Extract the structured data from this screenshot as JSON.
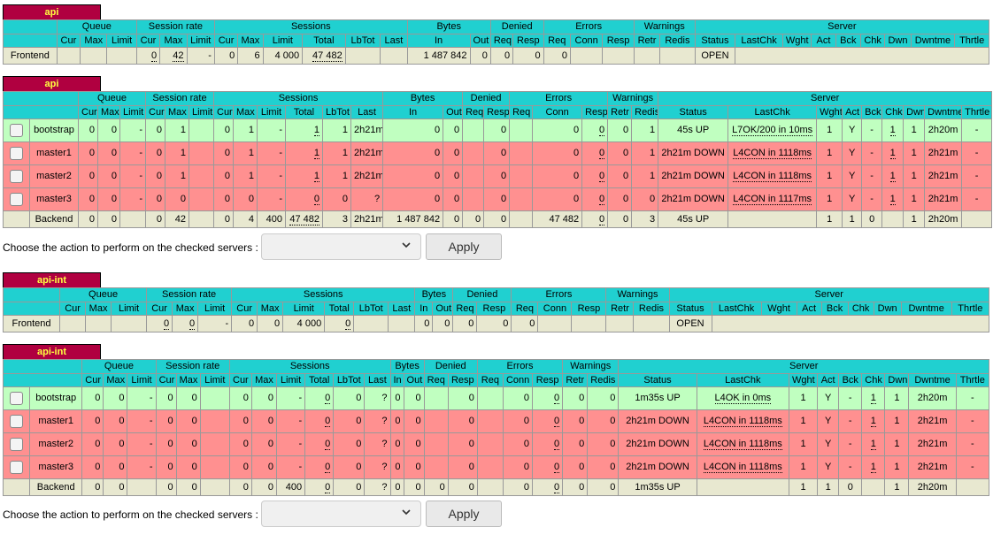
{
  "headers": {
    "queue": "Queue",
    "session_rate": "Session rate",
    "sessions": "Sessions",
    "bytes": "Bytes",
    "denied": "Denied",
    "errors": "Errors",
    "warnings": "Warnings",
    "server": "Server",
    "cur": "Cur",
    "max": "Max",
    "limit": "Limit",
    "total": "Total",
    "lbtot": "LbTot",
    "last": "Last",
    "in": "In",
    "out": "Out",
    "req": "Req",
    "resp": "Resp",
    "conn": "Conn",
    "retr": "Retr",
    "redis": "Redis",
    "status": "Status",
    "lastchk": "LastChk",
    "wght": "Wght",
    "act": "Act",
    "bck": "Bck",
    "chk": "Chk",
    "dwn": "Dwn",
    "dwntme": "Dwntme",
    "thrtle": "Thrtle"
  },
  "action": {
    "label": "Choose the action to perform on the checked servers :",
    "apply": "Apply",
    "dropdown_icon": "chevron-down-icon"
  },
  "colors": {
    "title_bg": "#b00040",
    "title_fg": "#ffff40",
    "header_bg": "#20d0d0",
    "up_bg": "#c0ffc0",
    "down_bg": "#ff9090",
    "frontend_bg": "#e8e8d0"
  },
  "api_frontend": {
    "title": "api",
    "row": {
      "name": "Frontend",
      "sr_cur": "0",
      "sr_max": "42",
      "sr_limit": "-",
      "s_cur": "0",
      "s_max": "6",
      "s_limit": "4 000",
      "s_total": "47 482",
      "b_in": "1 487 842",
      "b_out": "0",
      "d_req": "0",
      "d_resp": "0",
      "e_req": "0",
      "status": "OPEN"
    }
  },
  "api_backend": {
    "title": "api",
    "servers": [
      {
        "name": "bootstrap",
        "q_cur": "0",
        "q_max": "0",
        "q_limit": "-",
        "sr_cur": "0",
        "sr_max": "1",
        "s_cur": "0",
        "s_max": "1",
        "s_limit": "-",
        "s_total": "1",
        "s_lbtot": "1",
        "s_last": "2h21m",
        "b_in": "0",
        "b_out": "0",
        "d_resp": "0",
        "e_conn": "0",
        "e_resp": "0",
        "w_retr": "0",
        "w_redis": "1",
        "status": "45s UP",
        "lastchk": "L7OK/200 in 10ms",
        "wght": "1",
        "act": "Y",
        "bck": "-",
        "chk": "1",
        "dwn": "1",
        "dwntme": "2h20m",
        "thrtle": "-"
      },
      {
        "name": "master1",
        "q_cur": "0",
        "q_max": "0",
        "q_limit": "-",
        "sr_cur": "0",
        "sr_max": "1",
        "s_cur": "0",
        "s_max": "1",
        "s_limit": "-",
        "s_total": "1",
        "s_lbtot": "1",
        "s_last": "2h21m",
        "b_in": "0",
        "b_out": "0",
        "d_resp": "0",
        "e_conn": "0",
        "e_resp": "0",
        "w_retr": "0",
        "w_redis": "1",
        "status": "2h21m DOWN",
        "lastchk": "L4CON in 1118ms",
        "wght": "1",
        "act": "Y",
        "bck": "-",
        "chk": "1",
        "dwn": "1",
        "dwntme": "2h21m",
        "thrtle": "-"
      },
      {
        "name": "master2",
        "q_cur": "0",
        "q_max": "0",
        "q_limit": "-",
        "sr_cur": "0",
        "sr_max": "1",
        "s_cur": "0",
        "s_max": "1",
        "s_limit": "-",
        "s_total": "1",
        "s_lbtot": "1",
        "s_last": "2h21m",
        "b_in": "0",
        "b_out": "0",
        "d_resp": "0",
        "e_conn": "0",
        "e_resp": "0",
        "w_retr": "0",
        "w_redis": "1",
        "status": "2h21m DOWN",
        "lastchk": "L4CON in 1118ms",
        "wght": "1",
        "act": "Y",
        "bck": "-",
        "chk": "1",
        "dwn": "1",
        "dwntme": "2h21m",
        "thrtle": "-"
      },
      {
        "name": "master3",
        "q_cur": "0",
        "q_max": "0",
        "q_limit": "-",
        "sr_cur": "0",
        "sr_max": "0",
        "s_cur": "0",
        "s_max": "0",
        "s_limit": "-",
        "s_total": "0",
        "s_lbtot": "0",
        "s_last": "?",
        "b_in": "0",
        "b_out": "0",
        "d_resp": "0",
        "e_conn": "0",
        "e_resp": "0",
        "w_retr": "0",
        "w_redis": "0",
        "status": "2h21m DOWN",
        "lastchk": "L4CON in 1117ms",
        "wght": "1",
        "act": "Y",
        "bck": "-",
        "chk": "1",
        "dwn": "1",
        "dwntme": "2h21m",
        "thrtle": "-"
      }
    ],
    "backend": {
      "name": "Backend",
      "q_cur": "0",
      "q_max": "0",
      "sr_cur": "0",
      "sr_max": "42",
      "s_cur": "0",
      "s_max": "4",
      "s_limit": "400",
      "s_total": "47 482",
      "s_lbtot": "3",
      "s_last": "2h21m",
      "b_in": "1 487 842",
      "b_out": "0",
      "d_req": "0",
      "d_resp": "0",
      "e_conn": "47 482",
      "e_resp": "0",
      "w_retr": "0",
      "w_redis": "3",
      "status": "45s UP",
      "wght": "1",
      "act": "1",
      "bck": "0",
      "dwn": "1",
      "dwntme": "2h20m"
    }
  },
  "apiint_frontend": {
    "title": "api-int",
    "row": {
      "name": "Frontend",
      "sr_cur": "0",
      "sr_max": "0",
      "sr_limit": "-",
      "s_cur": "0",
      "s_max": "0",
      "s_limit": "4 000",
      "s_total": "0",
      "b_in": "0",
      "b_out": "0",
      "d_req": "0",
      "d_resp": "0",
      "e_req": "0",
      "status": "OPEN"
    }
  },
  "apiint_backend": {
    "title": "api-int",
    "servers": [
      {
        "name": "bootstrap",
        "q_cur": "0",
        "q_max": "0",
        "q_limit": "-",
        "sr_cur": "0",
        "sr_max": "0",
        "s_cur": "0",
        "s_max": "0",
        "s_limit": "-",
        "s_total": "0",
        "s_lbtot": "0",
        "s_last": "?",
        "b_in": "0",
        "b_out": "0",
        "d_resp": "0",
        "e_conn": "0",
        "e_resp": "0",
        "w_retr": "0",
        "w_redis": "0",
        "status": "1m35s UP",
        "lastchk": "L4OK in 0ms",
        "wght": "1",
        "act": "Y",
        "bck": "-",
        "chk": "1",
        "dwn": "1",
        "dwntme": "2h20m",
        "thrtle": "-"
      },
      {
        "name": "master1",
        "q_cur": "0",
        "q_max": "0",
        "q_limit": "-",
        "sr_cur": "0",
        "sr_max": "0",
        "s_cur": "0",
        "s_max": "0",
        "s_limit": "-",
        "s_total": "0",
        "s_lbtot": "0",
        "s_last": "?",
        "b_in": "0",
        "b_out": "0",
        "d_resp": "0",
        "e_conn": "0",
        "e_resp": "0",
        "w_retr": "0",
        "w_redis": "0",
        "status": "2h21m DOWN",
        "lastchk": "L4CON in 1118ms",
        "wght": "1",
        "act": "Y",
        "bck": "-",
        "chk": "1",
        "dwn": "1",
        "dwntme": "2h21m",
        "thrtle": "-"
      },
      {
        "name": "master2",
        "q_cur": "0",
        "q_max": "0",
        "q_limit": "-",
        "sr_cur": "0",
        "sr_max": "0",
        "s_cur": "0",
        "s_max": "0",
        "s_limit": "-",
        "s_total": "0",
        "s_lbtot": "0",
        "s_last": "?",
        "b_in": "0",
        "b_out": "0",
        "d_resp": "0",
        "e_conn": "0",
        "e_resp": "0",
        "w_retr": "0",
        "w_redis": "0",
        "status": "2h21m DOWN",
        "lastchk": "L4CON in 1118ms",
        "wght": "1",
        "act": "Y",
        "bck": "-",
        "chk": "1",
        "dwn": "1",
        "dwntme": "2h21m",
        "thrtle": "-"
      },
      {
        "name": "master3",
        "q_cur": "0",
        "q_max": "0",
        "q_limit": "-",
        "sr_cur": "0",
        "sr_max": "0",
        "s_cur": "0",
        "s_max": "0",
        "s_limit": "-",
        "s_total": "0",
        "s_lbtot": "0",
        "s_last": "?",
        "b_in": "0",
        "b_out": "0",
        "d_resp": "0",
        "e_conn": "0",
        "e_resp": "0",
        "w_retr": "0",
        "w_redis": "0",
        "status": "2h21m DOWN",
        "lastchk": "L4CON in 1118ms",
        "wght": "1",
        "act": "Y",
        "bck": "-",
        "chk": "1",
        "dwn": "1",
        "dwntme": "2h21m",
        "thrtle": "-"
      }
    ],
    "backend": {
      "name": "Backend",
      "q_cur": "0",
      "q_max": "0",
      "sr_cur": "0",
      "sr_max": "0",
      "s_cur": "0",
      "s_max": "0",
      "s_limit": "400",
      "s_total": "0",
      "s_lbtot": "0",
      "s_last": "?",
      "b_in": "0",
      "b_out": "0",
      "d_req": "0",
      "d_resp": "0",
      "e_conn": "0",
      "e_resp": "0",
      "w_retr": "0",
      "w_redis": "0",
      "status": "1m35s UP",
      "wght": "1",
      "act": "1",
      "bck": "0",
      "dwn": "1",
      "dwntme": "2h20m"
    }
  }
}
